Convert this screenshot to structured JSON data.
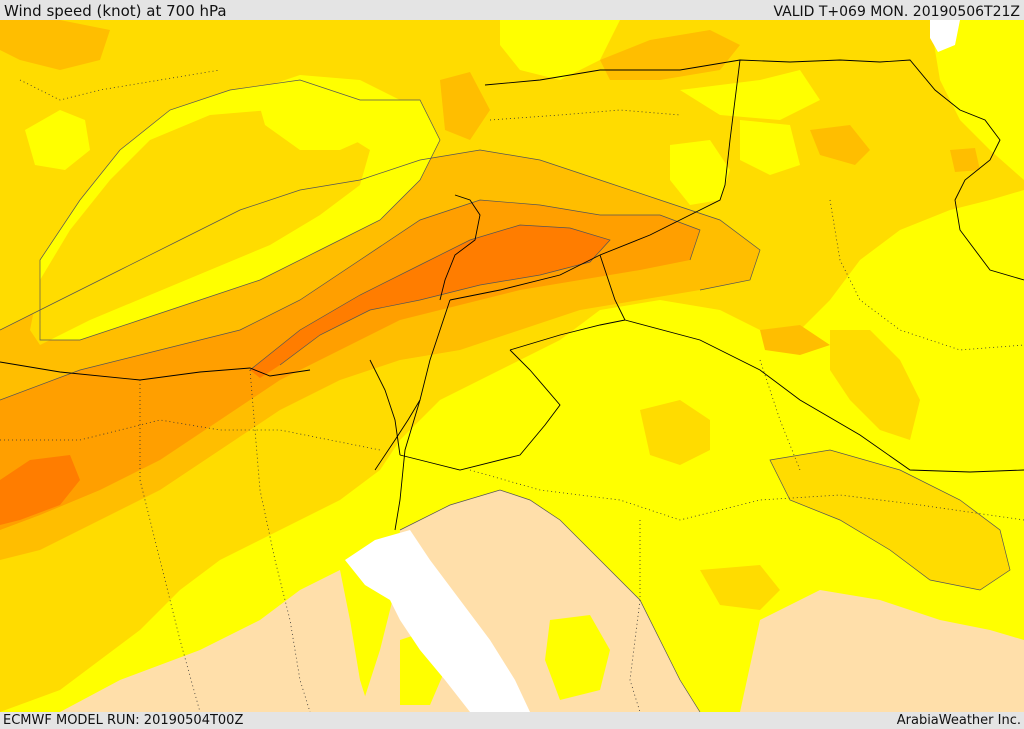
{
  "header": {
    "title": "Wind speed (knot) at 700 hPa",
    "valid_time": "VALID T+069 MON. 20190506T21Z"
  },
  "footer": {
    "model_run": "ECMWF MODEL RUN: 20190504T00Z",
    "credit": "ArabiaWeather Inc."
  },
  "map": {
    "field": "wind speed 700 hPa",
    "palette": {
      "band_0": "#ffdfaa",
      "band_1": "#ffff00",
      "band_2": "#ffdc00",
      "band_3": "#ffbe00",
      "band_4": "#ff9f00",
      "band_5": "#ff7d00",
      "sea_low": "#ffffff",
      "contour_line": "#555555",
      "border_line": "#000000"
    }
  }
}
